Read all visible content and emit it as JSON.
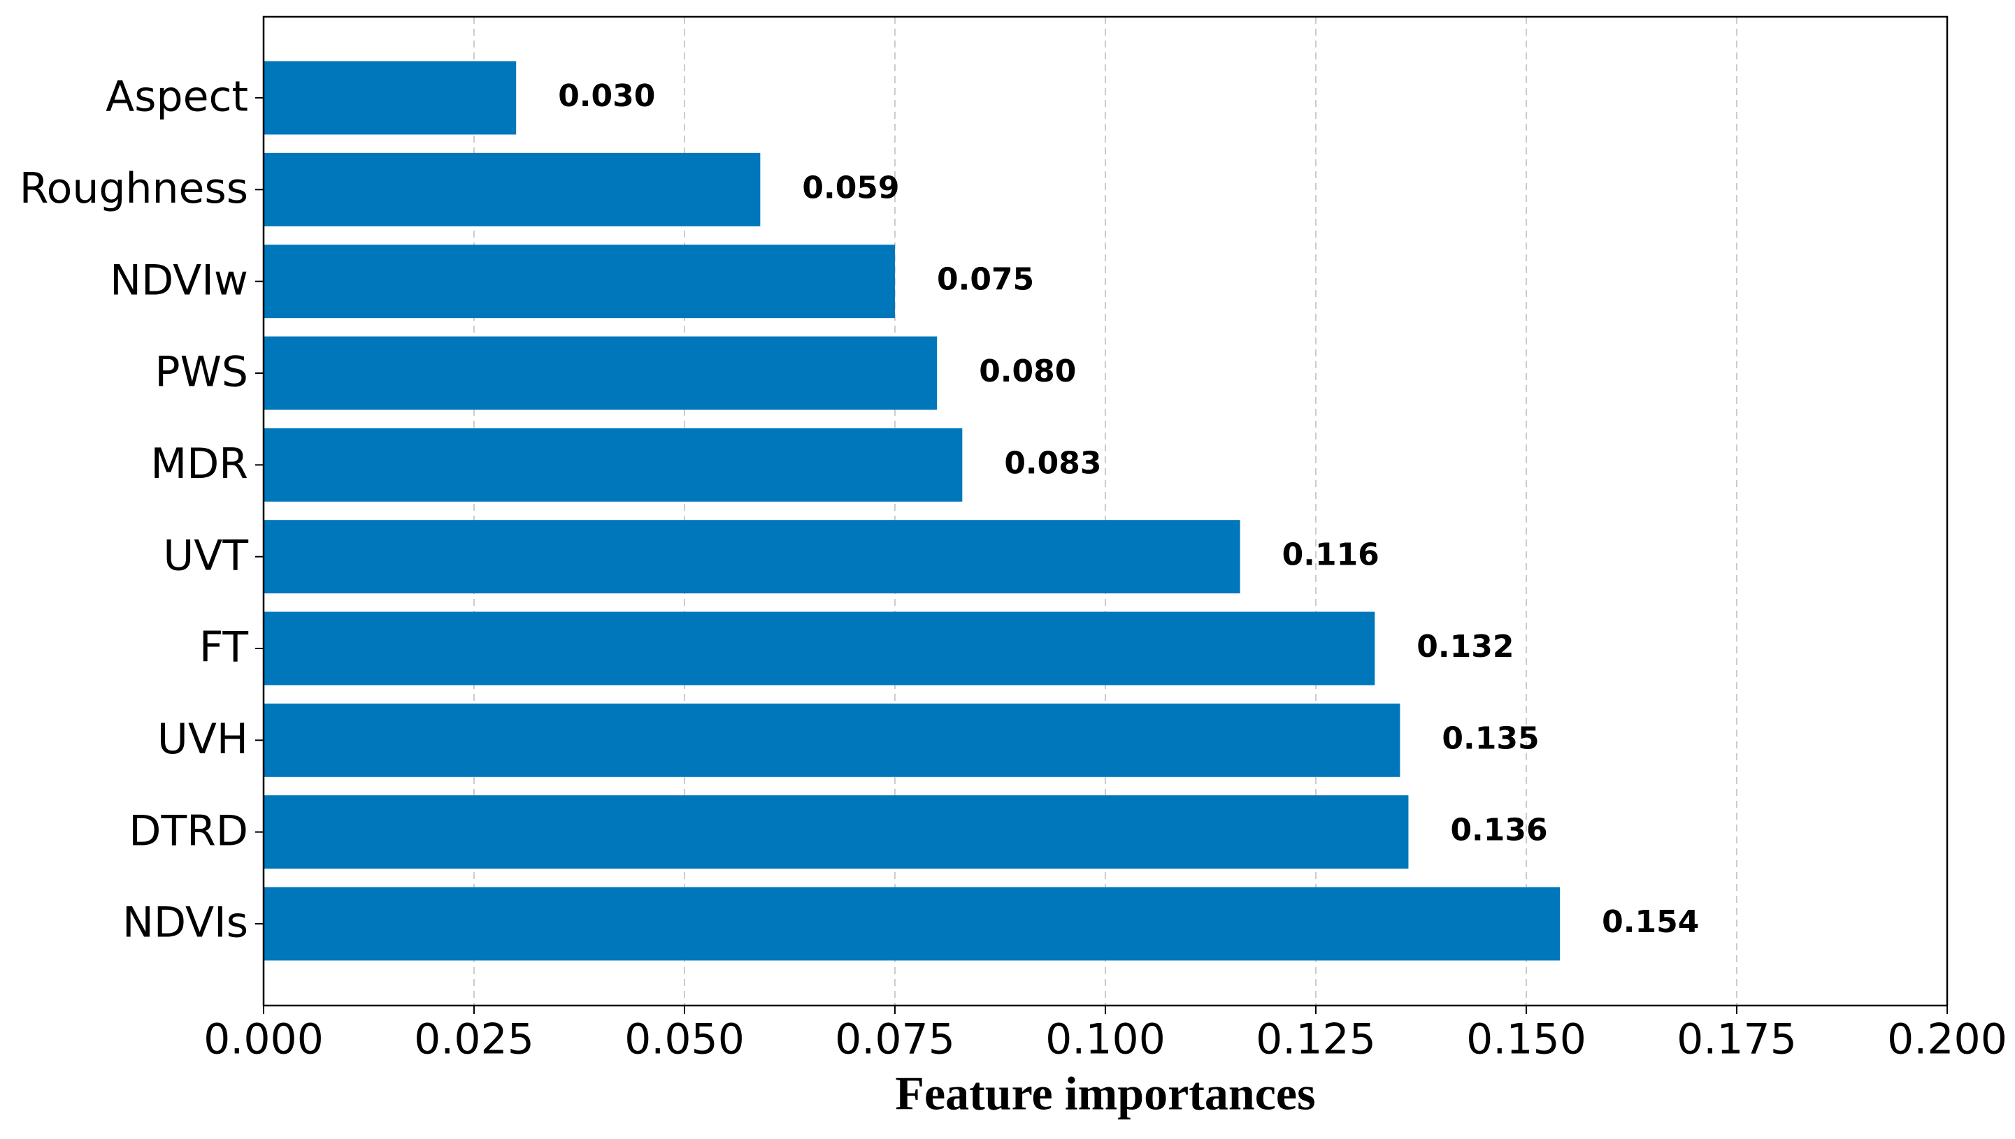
{
  "chart_data": {
    "type": "bar",
    "orientation": "horizontal",
    "x_label": "Feature importances",
    "categories": [
      "Aspect",
      "Roughness",
      "NDVIw",
      "PWS",
      "MDR",
      "UVT",
      "FT",
      "UVH",
      "DTRD",
      "NDVIs"
    ],
    "values": [
      0.03,
      0.059,
      0.075,
      0.08,
      0.083,
      0.116,
      0.132,
      0.135,
      0.136,
      0.154
    ],
    "value_labels": [
      "0.030",
      "0.059",
      "0.075",
      "0.080",
      "0.083",
      "0.116",
      "0.132",
      "0.135",
      "0.136",
      "0.154"
    ],
    "color": "#0077bb",
    "xlim": [
      0,
      0.2
    ],
    "xticks": [
      {
        "value": 0,
        "label": "0.000"
      },
      {
        "value": 0.025,
        "label": "0.025"
      },
      {
        "value": 0.05,
        "label": "0.050"
      },
      {
        "value": 0.075,
        "label": "0.075"
      },
      {
        "value": 0.1,
        "label": "0.100"
      },
      {
        "value": 0.125,
        "label": "0.125"
      },
      {
        "value": 0.15,
        "label": "0.150"
      },
      {
        "value": 0.175,
        "label": "0.175"
      },
      {
        "value": 0.2,
        "label": "0.200"
      }
    ],
    "grid": true
  }
}
